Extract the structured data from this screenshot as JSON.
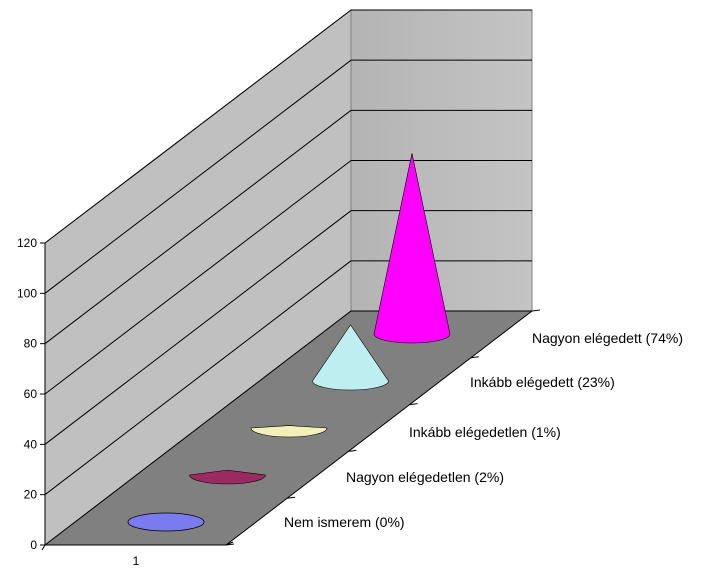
{
  "chart_data": {
    "type": "bar",
    "style": "3d-cone",
    "title": "",
    "xlabel": "",
    "ylabel": "",
    "ylim": [
      0,
      120
    ],
    "yticks": [
      "0",
      "20",
      "40",
      "60",
      "80",
      "100",
      "120"
    ],
    "xticks": [
      "1"
    ],
    "grid": true,
    "categories": [
      "Nem ismerem (0%)",
      "Nagyon elégedetlen (2%)",
      "Inkább elégedetlen (1%)",
      "Inkább elégedett (23%)",
      "Nagyon elégedett (74%)"
    ],
    "values": [
      0,
      2,
      1,
      23,
      74
    ],
    "colors": [
      "#7b7bf0",
      "#9c2a62",
      "#f2f0b8",
      "#bfeef0",
      "#ff00ff"
    ]
  }
}
